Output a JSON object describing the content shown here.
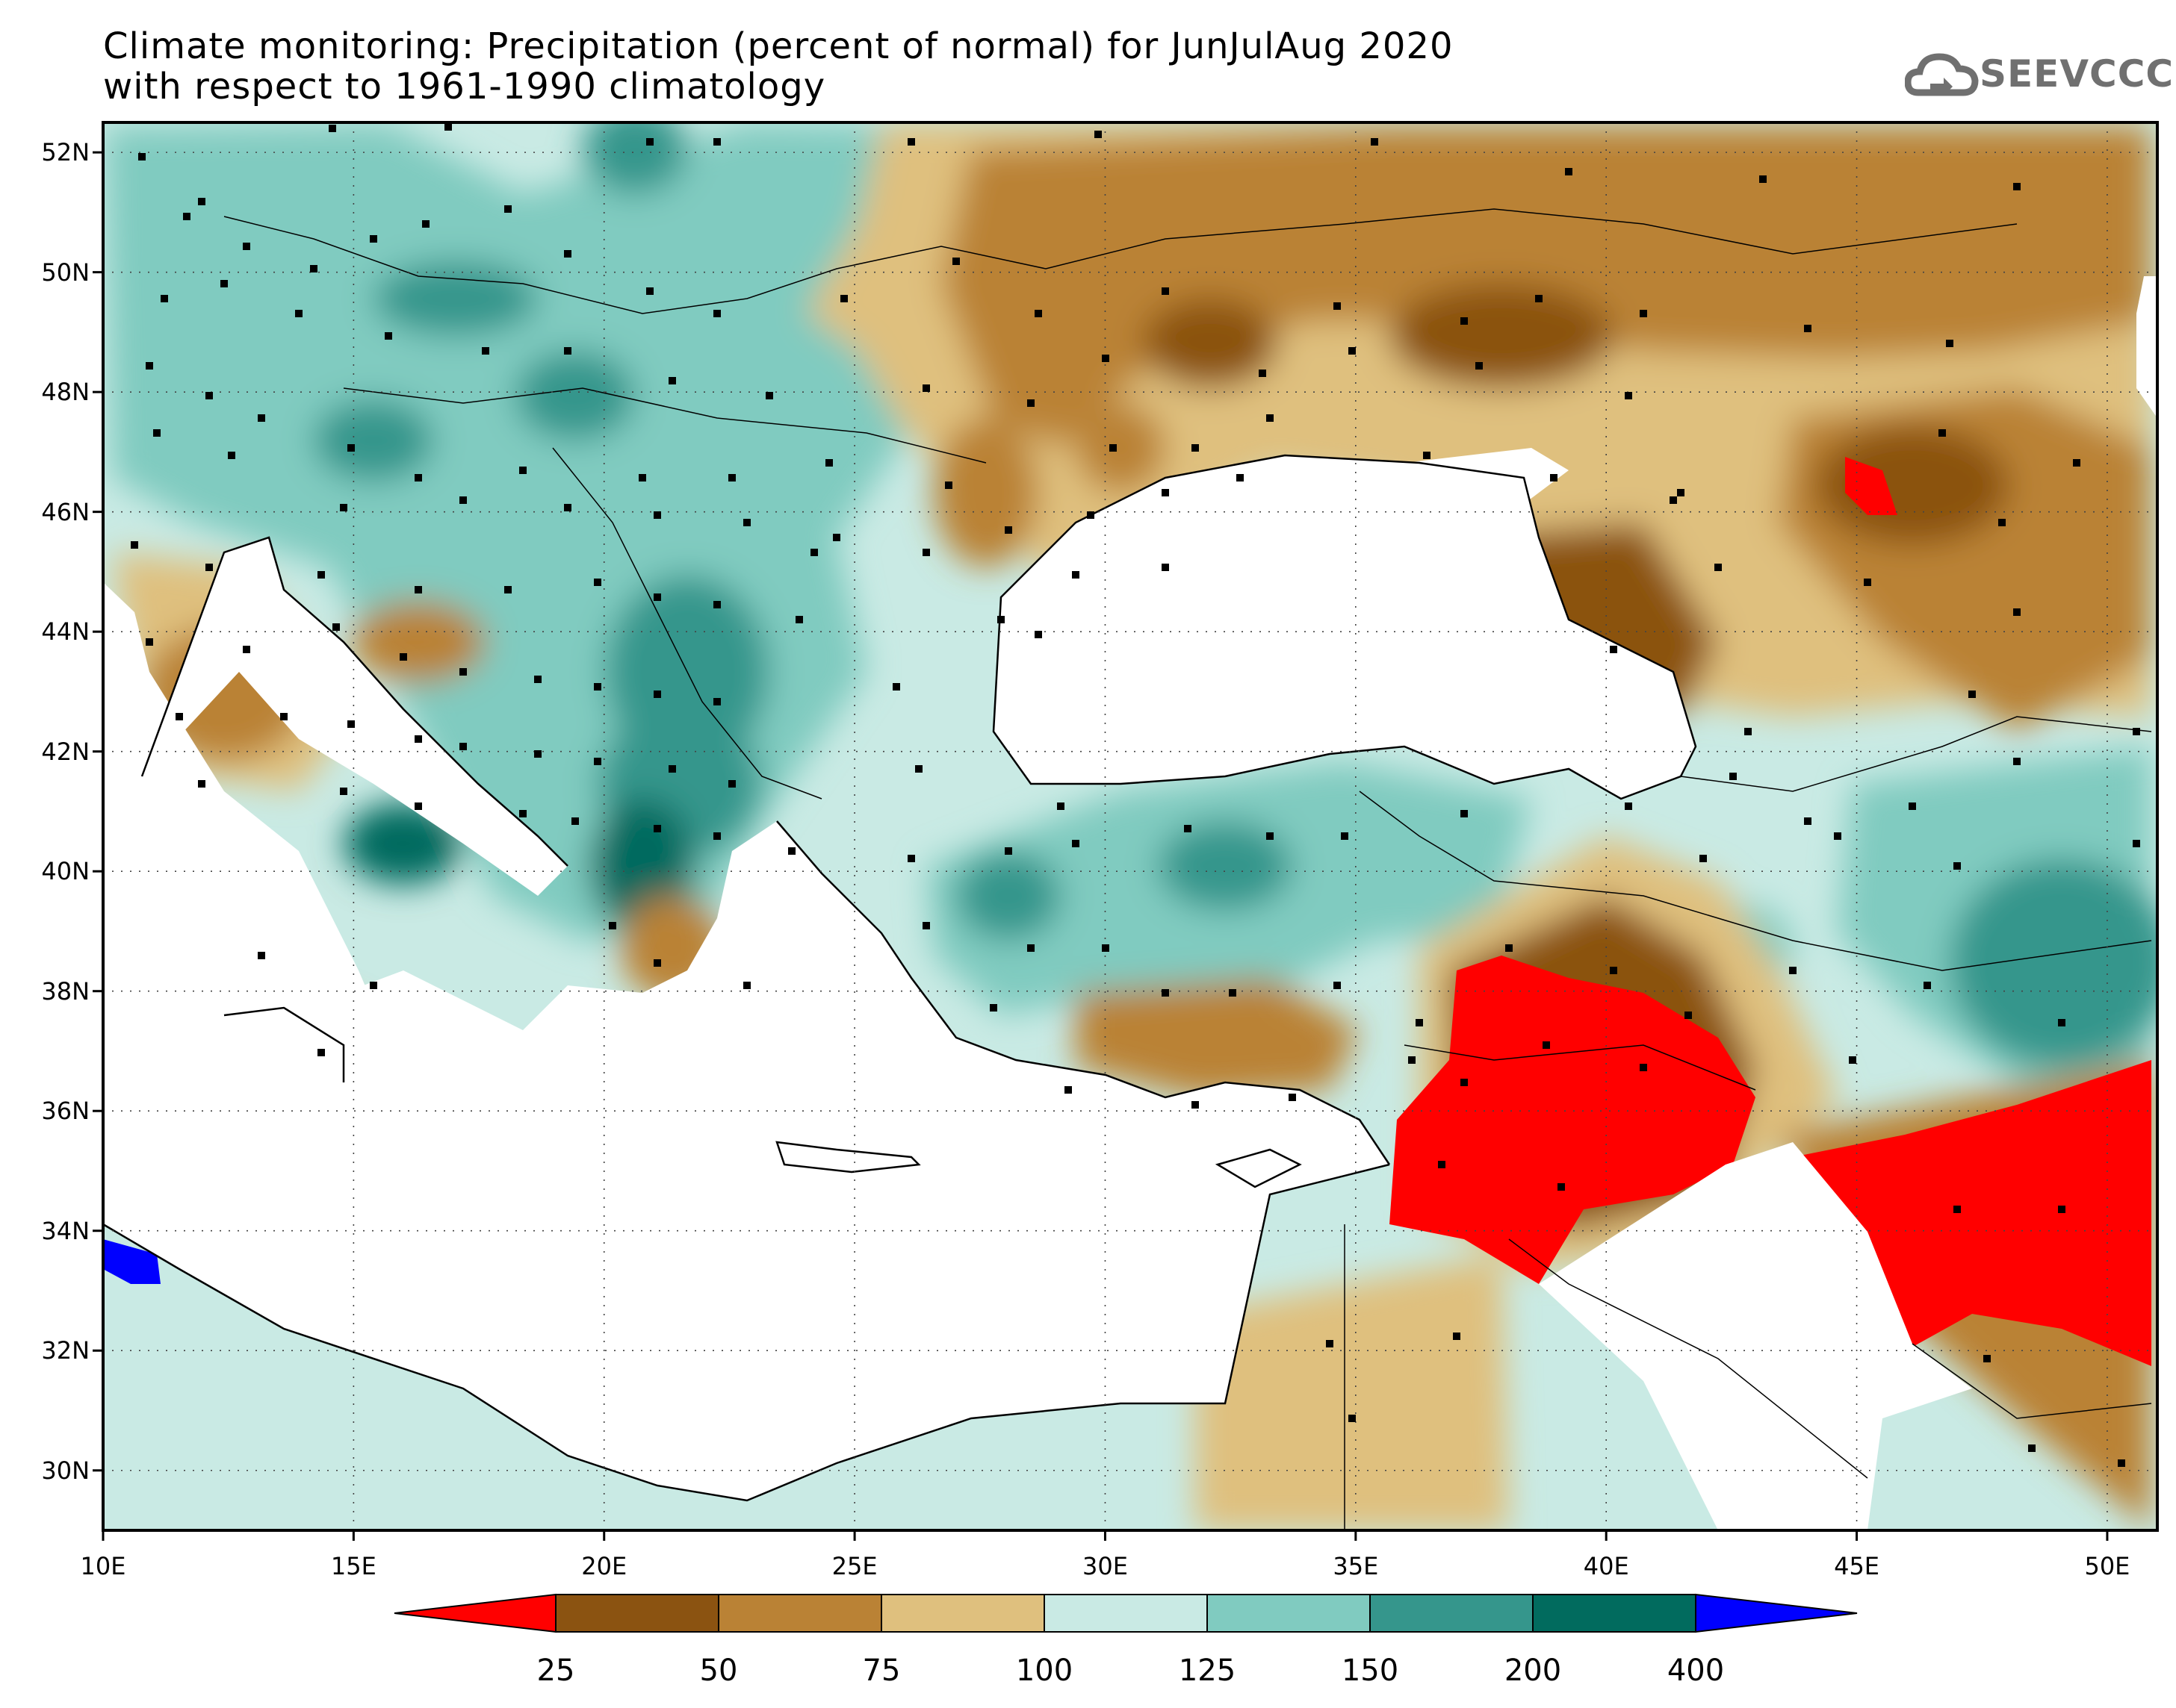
{
  "title": {
    "line1": "Climate monitoring: Precipitation (percent of normal) for JunJulAug 2020",
    "line2": "with respect to 1961-1990 climatology"
  },
  "logo": {
    "text": "SEEVCCC",
    "icon": "cloud-icon",
    "color": "#707070"
  },
  "map": {
    "lat_labels": [
      "52N",
      "50N",
      "48N",
      "46N",
      "44N",
      "42N",
      "40N",
      "38N",
      "36N",
      "34N",
      "32N",
      "30N"
    ],
    "lon_labels": [
      "10E",
      "15E",
      "20E",
      "25E",
      "30E",
      "35E",
      "40E",
      "45E",
      "50E"
    ],
    "lat_range": [
      29,
      52.5
    ],
    "lon_range": [
      10,
      51
    ],
    "grid": "dotted"
  },
  "legend": {
    "bin_colors": [
      "#ff0000",
      "#8b5311",
      "#ba8235",
      "#dfc07e",
      "#c9eae4",
      "#80cbc0",
      "#35968c",
      "#016b5e",
      "#0000ff"
    ],
    "labels": [
      "25",
      "50",
      "75",
      "100",
      "125",
      "150",
      "200",
      "400"
    ]
  }
}
